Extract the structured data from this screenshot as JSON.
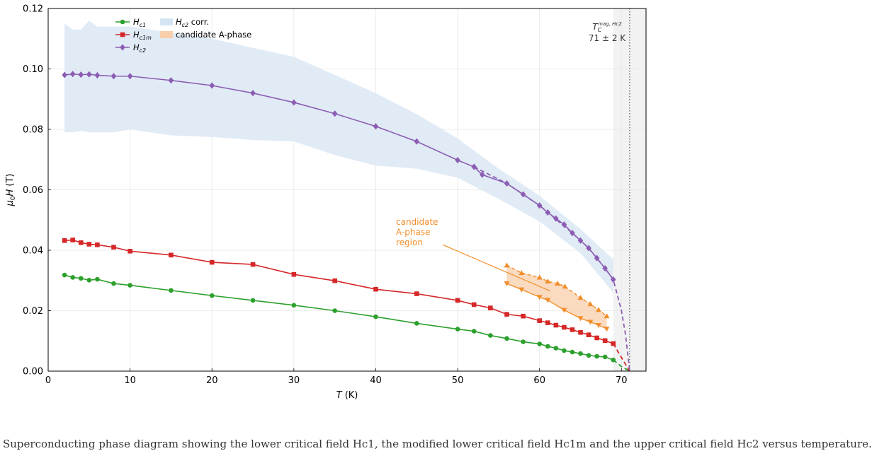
{
  "chart_data": {
    "type": "line",
    "xlabel": "T (K)",
    "ylabel": "μ0H (T)",
    "xlim": [
      0,
      73
    ],
    "ylim": [
      0,
      0.12
    ],
    "x_ticks": [
      0,
      10,
      20,
      30,
      40,
      50,
      60,
      70
    ],
    "y_ticks": [
      0.0,
      0.02,
      0.04,
      0.06,
      0.08,
      0.1,
      0.12
    ],
    "grid": true,
    "legend_position": "top-left",
    "tc": {
      "value": 71,
      "label_main": "T",
      "label_sub": "C",
      "label_sup": "mag, Hc2",
      "label_value": "71 ± 2 K"
    },
    "series": [
      {
        "name": "Hc1",
        "label_main": "H",
        "label_sub": "c1",
        "color": "#2ca02c",
        "marker": "circle",
        "x": [
          2,
          3,
          4,
          5,
          6,
          8,
          10,
          15,
          20,
          25,
          30,
          35,
          40,
          45,
          50,
          52,
          54,
          56,
          58,
          60,
          61,
          62,
          63,
          64,
          65,
          66,
          67,
          68,
          69
        ],
        "y": [
          0.0318,
          0.031,
          0.0307,
          0.0301,
          0.0304,
          0.029,
          0.0284,
          0.0267,
          0.025,
          0.0234,
          0.0218,
          0.02,
          0.018,
          0.0158,
          0.0139,
          0.0132,
          0.0118,
          0.0108,
          0.0097,
          0.009,
          0.0082,
          0.0076,
          0.0068,
          0.0063,
          0.0058,
          0.0052,
          0.0049,
          0.0047,
          0.0037
        ],
        "extrap_x": [
          69,
          70,
          71
        ],
        "extrap_y": [
          0.0037,
          0.0015,
          0
        ]
      },
      {
        "name": "Hc1m",
        "label_main": "H",
        "label_sub": "c1m",
        "color": "#d62728",
        "marker": "square",
        "x": [
          2,
          3,
          4,
          5,
          6,
          8,
          10,
          15,
          20,
          25,
          30,
          35,
          40,
          45,
          50,
          52,
          54,
          56,
          58,
          60,
          61,
          62,
          63,
          64,
          65,
          66,
          67,
          68,
          69
        ],
        "y": [
          0.0432,
          0.0434,
          0.0425,
          0.042,
          0.0418,
          0.041,
          0.0397,
          0.0384,
          0.036,
          0.0353,
          0.032,
          0.0299,
          0.0271,
          0.0256,
          0.0234,
          0.022,
          0.0209,
          0.0188,
          0.0182,
          0.0167,
          0.016,
          0.0152,
          0.0145,
          0.0137,
          0.0128,
          0.012,
          0.011,
          0.0101,
          0.0091
        ],
        "extrap_x": [
          69,
          70,
          71
        ],
        "extrap_y": [
          0.0091,
          0.0045,
          0
        ]
      },
      {
        "name": "Hc2",
        "label_main": "H",
        "label_sub": "c2",
        "color": "#8c5db3",
        "marker": "diamond",
        "x": [
          2,
          3,
          4,
          5,
          6,
          8,
          10,
          15,
          20,
          25,
          30,
          35,
          40,
          45,
          50,
          52,
          53,
          56,
          58,
          60,
          61,
          62,
          63,
          64,
          65,
          66,
          67,
          68,
          69
        ],
        "y": [
          0.098,
          0.0983,
          0.0981,
          0.0982,
          0.0979,
          0.0976,
          0.0976,
          0.0962,
          0.0945,
          0.092,
          0.0889,
          0.0852,
          0.081,
          0.076,
          0.0698,
          0.0676,
          0.065,
          0.0621,
          0.0585,
          0.0548,
          0.0525,
          0.0505,
          0.0485,
          0.0457,
          0.0432,
          0.0407,
          0.0374,
          0.034,
          0.0303
        ],
        "extrap_x": [
          52,
          56,
          60,
          64,
          66,
          68,
          69,
          70,
          70.5,
          71
        ],
        "extrap_y": [
          0.0676,
          0.0621,
          0.0548,
          0.0457,
          0.0407,
          0.034,
          0.0303,
          0.02,
          0.012,
          0
        ]
      }
    ],
    "band": {
      "name": "Hc2 corr.",
      "label_main": "H",
      "label_sub": "c2",
      "label_rest": " corr.",
      "color": "#c6dbef",
      "x": [
        2,
        3,
        4,
        5,
        6,
        8,
        10,
        15,
        20,
        25,
        30,
        35,
        40,
        45,
        50,
        55,
        60,
        65,
        69
      ],
      "upper": [
        0.115,
        0.113,
        0.113,
        0.116,
        0.114,
        0.114,
        0.114,
        0.112,
        0.11,
        0.107,
        0.104,
        0.098,
        0.092,
        0.085,
        0.077,
        0.067,
        0.058,
        0.047,
        0.037
      ],
      "lower": [
        0.079,
        0.079,
        0.0795,
        0.079,
        0.079,
        0.079,
        0.08,
        0.078,
        0.0775,
        0.0765,
        0.076,
        0.0715,
        0.068,
        0.067,
        0.064,
        0.057,
        0.0495,
        0.039,
        0.026
      ]
    },
    "a_phase": {
      "name": "candidate A-phase",
      "color": "#f9cfab",
      "upper_x": [
        56,
        57.8,
        60,
        61,
        62.2,
        63.1,
        65,
        66.2,
        67.2,
        68.2
      ],
      "upper_y": [
        0.035,
        0.0325,
        0.031,
        0.0297,
        0.029,
        0.028,
        0.0243,
        0.0222,
        0.0203,
        0.0182
      ],
      "lower_x": [
        56,
        57.8,
        60,
        61,
        63,
        65,
        66.2,
        67.2,
        68.2
      ],
      "lower_y": [
        0.029,
        0.027,
        0.0245,
        0.0235,
        0.0202,
        0.0175,
        0.0163,
        0.0152,
        0.014
      ],
      "annotation": "candidate\nA-phase\nregion",
      "arrow_from": [
        48.2,
        0.0418
      ],
      "arrow_to": [
        61.3,
        0.0265
      ]
    }
  },
  "caption": "Superconducting phase diagram showing the lower critical field Hc1, the modified lower critical field Hc1m and the upper critical field Hc2 versus temperature."
}
